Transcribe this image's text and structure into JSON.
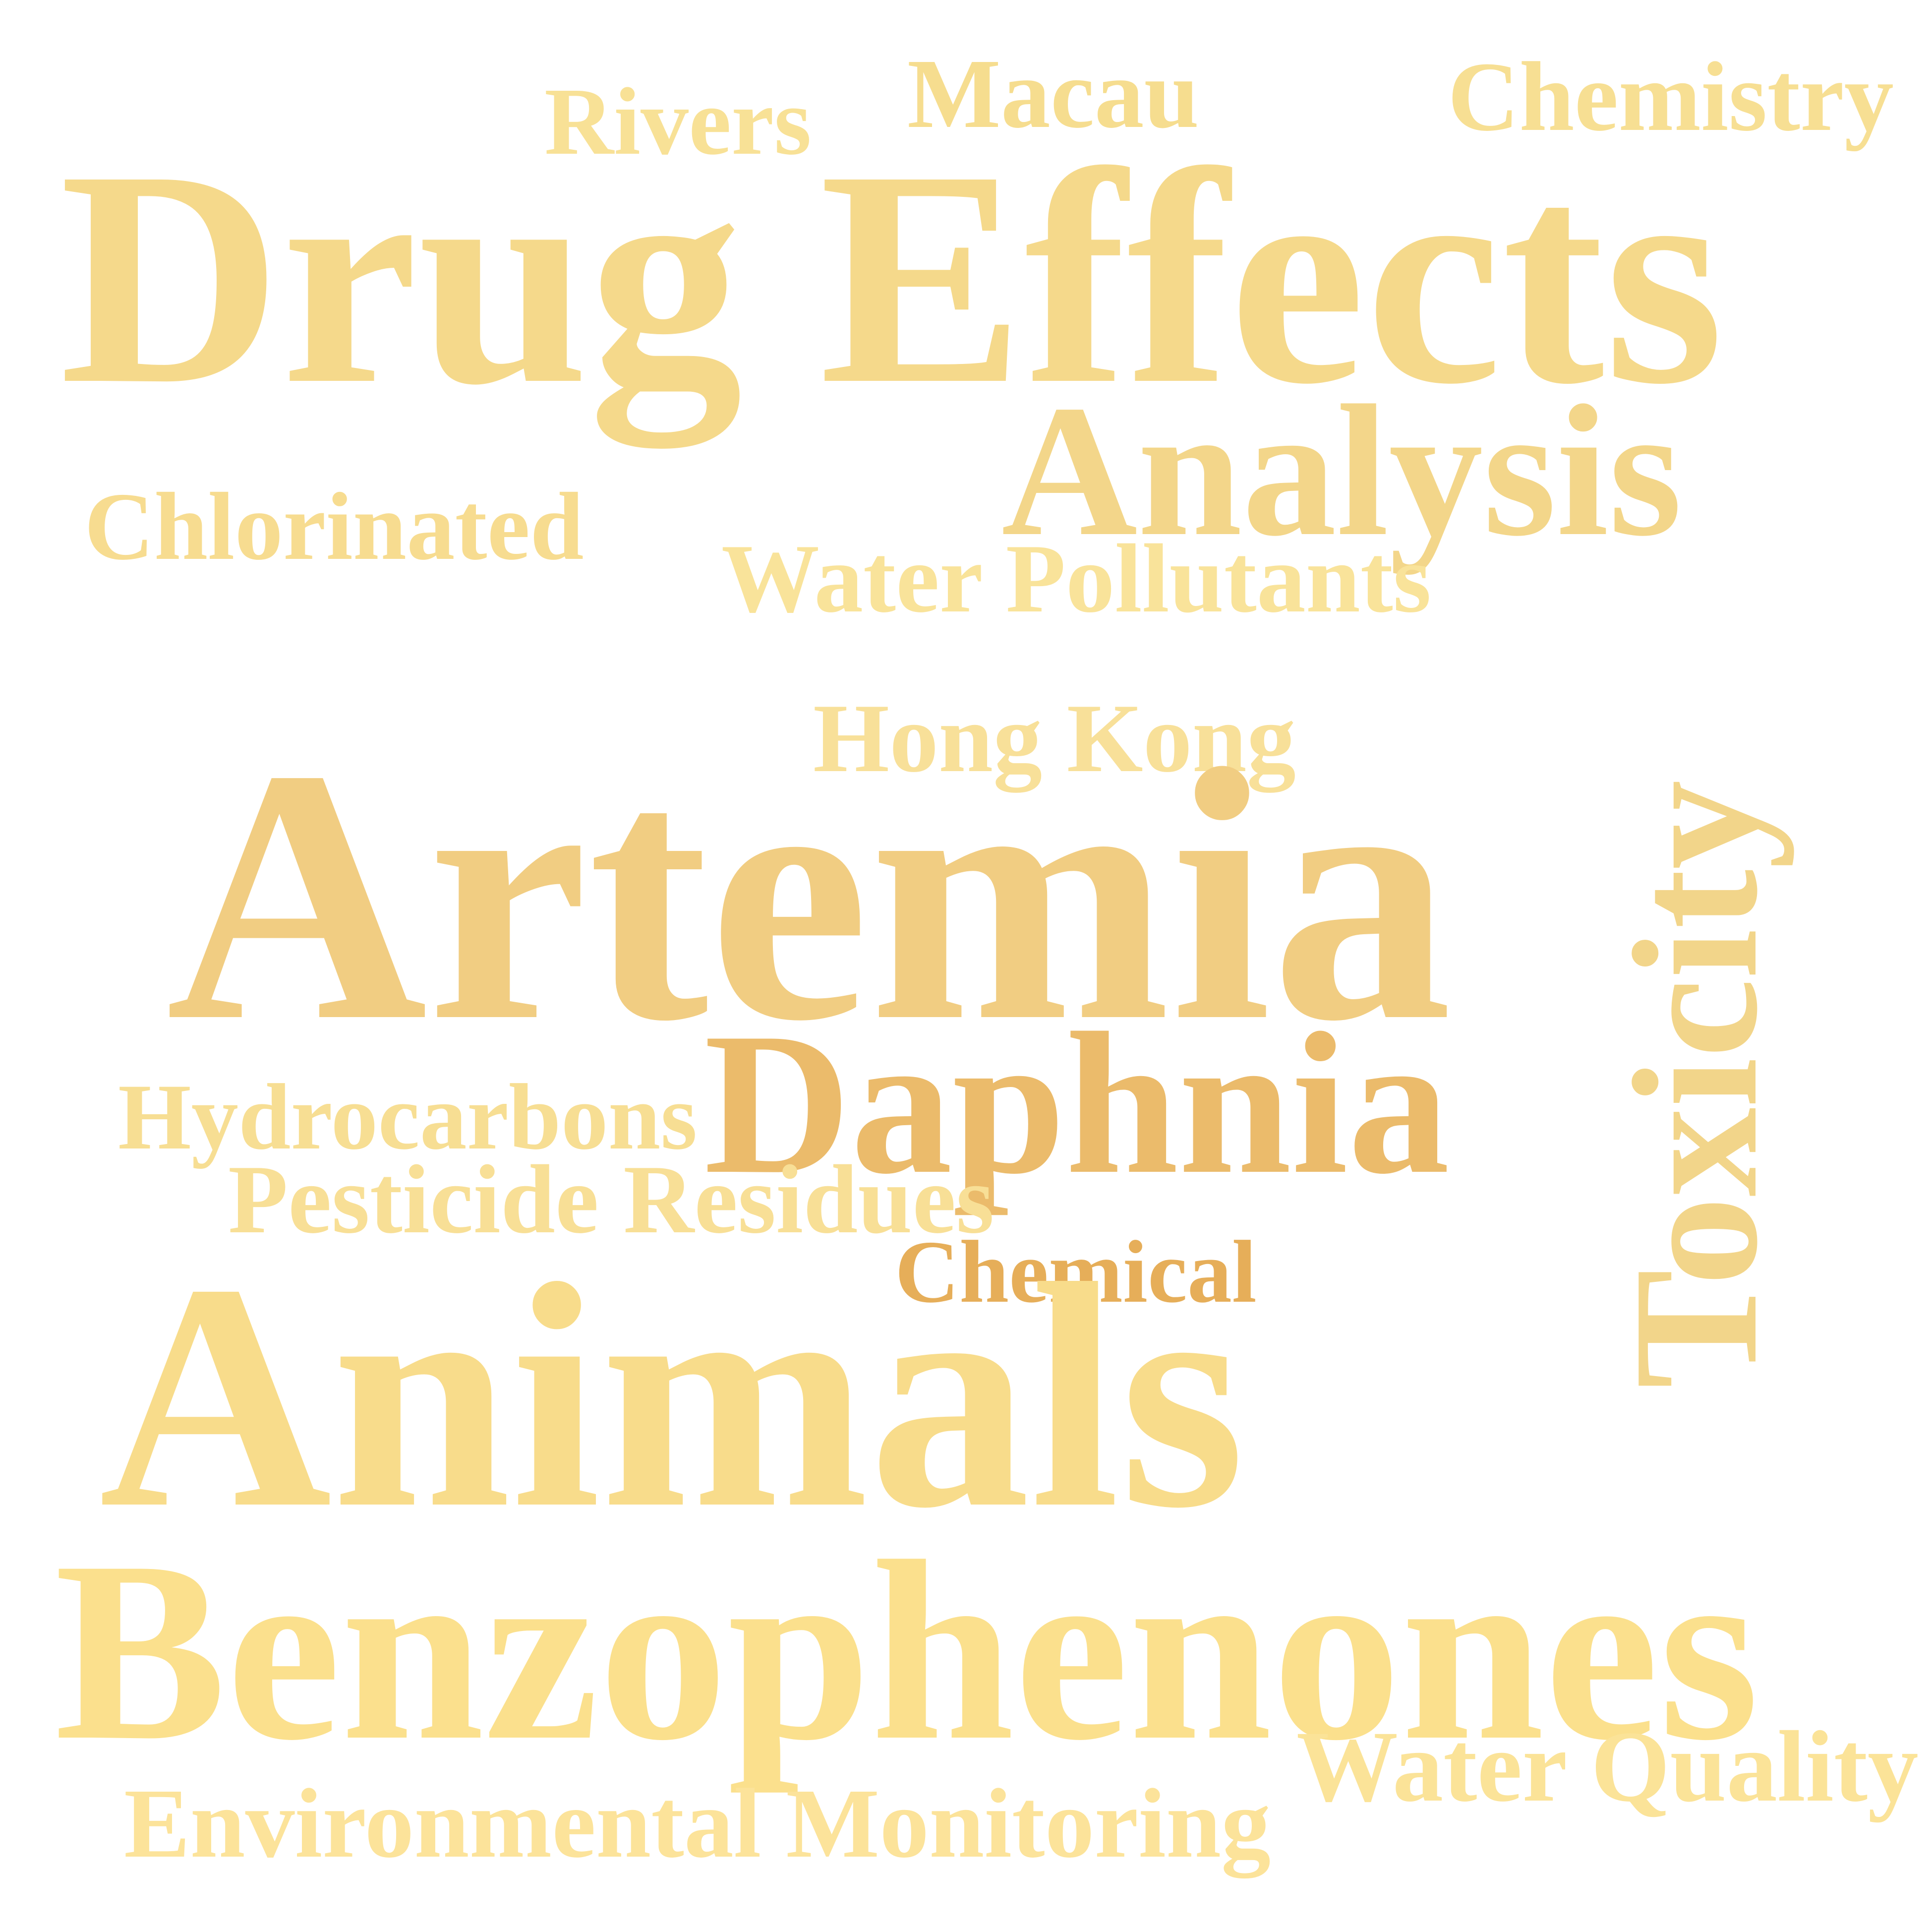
{
  "words": [
    {
      "text": "Macau",
      "color": "#F6DD8F"
    },
    {
      "text": "Chemistry",
      "color": "#F7DF93"
    },
    {
      "text": "Rivers",
      "color": "#F8E196"
    },
    {
      "text": "Drug Effects",
      "color": "#F5D98B"
    },
    {
      "text": "Analysis",
      "color": "#F3D68A"
    },
    {
      "text": "Chlorinated",
      "color": "#F7DC90"
    },
    {
      "text": "Water Pollutants",
      "color": "#F9E39A"
    },
    {
      "text": "Hong Kong",
      "color": "#F8E099"
    },
    {
      "text": "Artemia",
      "color": "#F1CD82"
    },
    {
      "text": "Toxicity",
      "color": "#F2D58A"
    },
    {
      "text": "Daphnia",
      "color": "#EBBB6B"
    },
    {
      "text": "Hydrocarbons",
      "color": "#F7DE93"
    },
    {
      "text": "Pesticide Residues",
      "color": "#F8DF96"
    },
    {
      "text": "Chemical",
      "color": "#E6AE59"
    },
    {
      "text": "Animals",
      "color": "#F8DC8B"
    },
    {
      "text": "Benzophenones",
      "color": "#FBE08D"
    },
    {
      "text": "Water Quality",
      "color": "#FBE398"
    },
    {
      "text": "Environmental Monitoring",
      "color": "#FCE39A"
    }
  ]
}
